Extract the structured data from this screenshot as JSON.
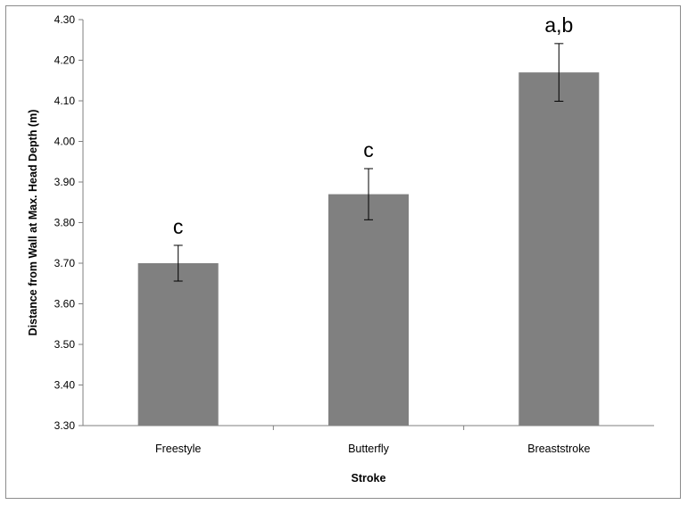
{
  "chart_data": {
    "type": "bar",
    "title": "",
    "xlabel": "Stroke",
    "ylabel": "Distance from Wall at Max. Head Depth (m)",
    "ylim": [
      3.3,
      4.3
    ],
    "yticks": [
      "3.30",
      "3.40",
      "3.50",
      "3.60",
      "3.70",
      "3.80",
      "3.90",
      "4.00",
      "4.10",
      "4.20",
      "4.30"
    ],
    "categories": [
      "Freestyle",
      "Butterfly",
      "Breaststroke"
    ],
    "values": [
      3.7,
      3.87,
      4.17
    ],
    "error": [
      0.044,
      0.063,
      0.071
    ],
    "annotations": [
      "c",
      "c",
      "a,b"
    ],
    "bar_color": "#808080",
    "grid": false,
    "legend": "none"
  }
}
